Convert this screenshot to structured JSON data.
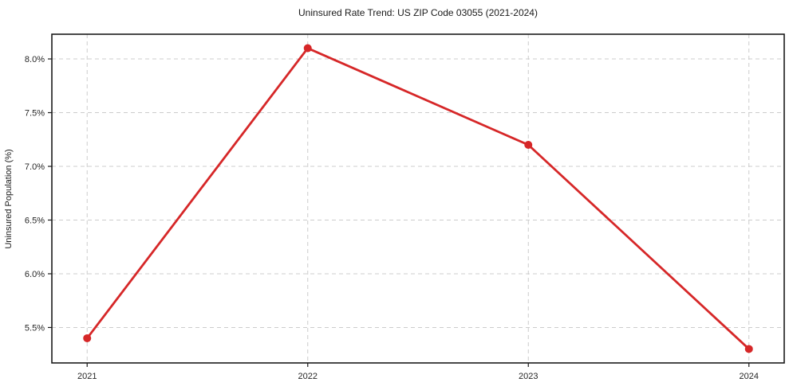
{
  "chart": {
    "title": "Uninsured Rate Trend: US ZIP Code 03055 (2021-2024)",
    "ylabel": "Uninsured Population (%)"
  },
  "chart_data": {
    "type": "line",
    "title": "Uninsured Rate Trend: US ZIP Code 03055 (2021-2024)",
    "xlabel": "",
    "ylabel": "Uninsured Population (%)",
    "categories": [
      "2021",
      "2022",
      "2023",
      "2024"
    ],
    "x": [
      2021,
      2022,
      2023,
      2024
    ],
    "values": [
      5.4,
      8.1,
      7.2,
      5.3
    ],
    "ylim": [
      5.17,
      8.23
    ],
    "yticks": [
      5.5,
      6.0,
      6.5,
      7.0,
      7.5,
      8.0
    ],
    "ytick_labels": [
      "5.5%",
      "6.0%",
      "6.5%",
      "7.0%",
      "7.5%",
      "8.0%"
    ],
    "xtick_labels": [
      "2021",
      "2022",
      "2023",
      "2024"
    ],
    "grid": true,
    "grid_style": "dashed",
    "legend_position": "none",
    "line_color": "#d62728",
    "marker": "circle",
    "grid_color": "#cccccc",
    "frame_color": "#1a1a1a",
    "background": "#ffffff"
  }
}
